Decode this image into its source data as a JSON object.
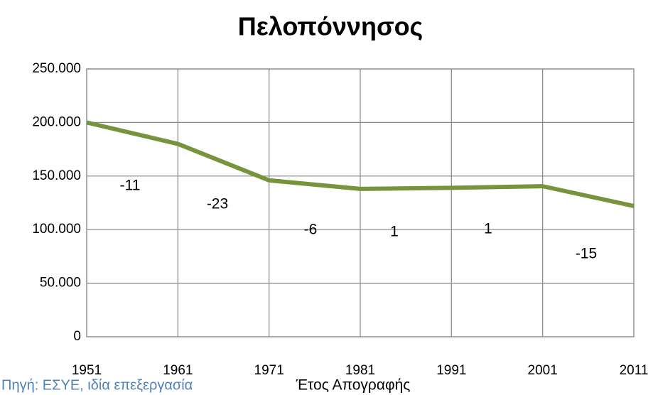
{
  "chart_data": {
    "type": "line",
    "title": "Πελοπόννησος",
    "x": [
      1951,
      1961,
      1971,
      1981,
      1991,
      2001,
      2011
    ],
    "series": [
      {
        "name": "Πελοπόννησος",
        "color": "#77933c",
        "values": [
          200000,
          180000,
          146000,
          138000,
          139000,
          140500,
          122000
        ]
      }
    ],
    "xlim": [
      1951,
      2011
    ],
    "xticks": [
      1951,
      1961,
      1971,
      1981,
      1991,
      2001,
      2011
    ],
    "ylim": [
      0,
      250000
    ],
    "yticks": [
      0,
      {
        "value": 50000,
        "label": "50.000"
      },
      {
        "value": 100000,
        "label": "100.000"
      },
      {
        "value": 150000,
        "label": "150.000"
      },
      {
        "value": 200000,
        "label": "200.000"
      },
      {
        "value": 250000,
        "label": "250.000"
      }
    ],
    "grid": true,
    "xlabel": "Έτος Απογραφής",
    "source": "Πηγή: ΕΣΥΕ, ιδία επεξεργασία",
    "annotations": [
      "-11",
      "-23",
      "-6",
      "1",
      "1",
      "-15"
    ]
  }
}
